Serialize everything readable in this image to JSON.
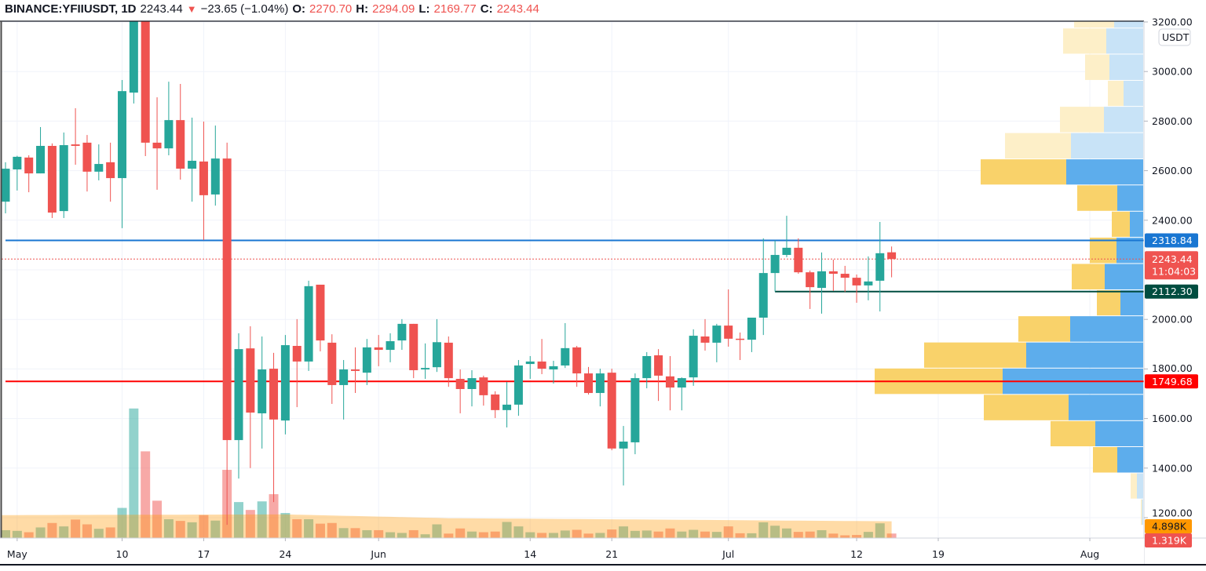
{
  "header": {
    "symbol": "BINANCE:YFIIUSDT, 1D",
    "last": "2243.44",
    "change": "−23.65 (−1.04%)",
    "change_direction_icon": "triangle-down-icon",
    "o_label": "O:",
    "o": "2270.70",
    "h_label": "H:",
    "h": "2294.09",
    "l_label": "L:",
    "l": "2169.77",
    "c_label": "C:",
    "c": "2243.44"
  },
  "colors": {
    "up": "#26a69a",
    "down": "#ef5350",
    "profile_up": "#5dadec",
    "profile_down": "#f9d26a",
    "profile_up_light": "#c8e3f7",
    "profile_down_light": "#fdefc8",
    "volume_ma": "#ffcc99"
  },
  "chart_data": {
    "type": "candlestick",
    "currency": "USDT",
    "ylim": [
      1171,
      3283
    ],
    "y_ticks": [
      "3200.00",
      "3000.00",
      "2800.00",
      "2600.00",
      "2400.00",
      "2000.00",
      "1800.00",
      "1600.00",
      "1400.00",
      "1200.00"
    ],
    "x_ticks": [
      {
        "label": "May",
        "date": "05-01"
      },
      {
        "label": "10",
        "date": "05-10"
      },
      {
        "label": "17",
        "date": "05-17"
      },
      {
        "label": "24",
        "date": "05-24"
      },
      {
        "label": "Jun",
        "date": "06-01"
      },
      {
        "label": "14",
        "date": "06-14"
      },
      {
        "label": "21",
        "date": "06-21"
      },
      {
        "label": "Jul",
        "date": "07-01"
      },
      {
        "label": "12",
        "date": "07-12"
      },
      {
        "label": "19",
        "date": "07-19"
      },
      {
        "label": "Aug",
        "date": "08-01"
      }
    ],
    "grid": true,
    "candle_fields": [
      "date",
      "open",
      "high",
      "low",
      "close",
      "volume_k"
    ],
    "candles": [
      [
        "04-30",
        2475,
        2634,
        2428,
        2608,
        2.3
      ],
      [
        "05-01",
        2605,
        2660,
        2520,
        2656,
        2.1
      ],
      [
        "05-02",
        2653,
        2662,
        2513,
        2589,
        1.7
      ],
      [
        "05-03",
        2589,
        2776,
        2589,
        2700,
        3.1
      ],
      [
        "05-04",
        2700,
        2710,
        2409,
        2431,
        4.4
      ],
      [
        "05-05",
        2437,
        2754,
        2409,
        2703,
        3.4
      ],
      [
        "05-06",
        2706,
        2852,
        2624,
        2700,
        5.4
      ],
      [
        "05-07",
        2713,
        2744,
        2516,
        2596,
        4.0
      ],
      [
        "05-08",
        2596,
        2706,
        2561,
        2627,
        2.7
      ],
      [
        "05-09",
        2634,
        2713,
        2475,
        2570,
        3.1
      ],
      [
        "05-10",
        2570,
        2966,
        2368,
        2921,
        8.8
      ],
      [
        "05-11",
        2915,
        3283,
        2871,
        3260,
        37.8
      ],
      [
        "05-12",
        3260,
        3270,
        2659,
        2713,
        25.3
      ],
      [
        "05-13",
        2713,
        2896,
        2523,
        2690,
        10.9
      ],
      [
        "05-14",
        2690,
        2959,
        2662,
        2804,
        5.5
      ],
      [
        "05-15",
        2804,
        2950,
        2564,
        2608,
        5.0
      ],
      [
        "05-16",
        2608,
        2814,
        2475,
        2640,
        4.6
      ],
      [
        "05-17",
        2637,
        2798,
        2320,
        2501,
        6.7
      ],
      [
        "05-18",
        2504,
        2782,
        2459,
        2649,
        5.1
      ],
      [
        "05-19",
        2649,
        2713,
        1171,
        1513,
        19.9
      ],
      [
        "05-20",
        1513,
        1944,
        1358,
        1880,
        10.5
      ],
      [
        "05-21",
        1883,
        1972,
        1400,
        1624,
        8.2
      ],
      [
        "05-22",
        1621,
        1931,
        1479,
        1798,
        10.7
      ],
      [
        "05-23",
        1801,
        1865,
        1263,
        1596,
        12.8
      ],
      [
        "05-24",
        1592,
        1937,
        1536,
        1896,
        7.3
      ],
      [
        "05-25",
        1893,
        2001,
        1646,
        1830,
        5.5
      ],
      [
        "05-26",
        1830,
        2156,
        1792,
        2134,
        5.5
      ],
      [
        "05-27",
        2140,
        2140,
        1871,
        1915,
        4.2
      ],
      [
        "05-28",
        1906,
        1940,
        1659,
        1735,
        4.4
      ],
      [
        "05-29",
        1735,
        1836,
        1596,
        1798,
        2.9
      ],
      [
        "05-30",
        1798,
        1887,
        1703,
        1792,
        2.9
      ],
      [
        "05-31",
        1785,
        1921,
        1735,
        1887,
        2.3
      ],
      [
        "06-01",
        1887,
        1937,
        1811,
        1877,
        2.3
      ],
      [
        "06-02",
        1877,
        1944,
        1827,
        1912,
        1.7
      ],
      [
        "06-03",
        1915,
        2001,
        1877,
        1982,
        1.5
      ],
      [
        "06-04",
        1982,
        1982,
        1763,
        1795,
        2.3
      ],
      [
        "06-05",
        1798,
        1903,
        1760,
        1804,
        1.1
      ],
      [
        "06-06",
        1807,
        2001,
        1788,
        1908,
        4.0
      ],
      [
        "06-07",
        1906,
        1931,
        1728,
        1763,
        1.3
      ],
      [
        "06-08",
        1760,
        1798,
        1621,
        1719,
        2.8
      ],
      [
        "06-09",
        1719,
        1795,
        1649,
        1763,
        1.9
      ],
      [
        "06-10",
        1766,
        1773,
        1652,
        1694,
        1.7
      ],
      [
        "06-11",
        1697,
        1710,
        1602,
        1634,
        1.9
      ],
      [
        "06-12",
        1634,
        1748,
        1564,
        1656,
        4.7
      ],
      [
        "06-13",
        1656,
        1836,
        1611,
        1814,
        3.4
      ],
      [
        "06-14",
        1820,
        1852,
        1760,
        1830,
        1.7
      ],
      [
        "06-15",
        1830,
        1921,
        1779,
        1801,
        1.5
      ],
      [
        "06-16",
        1798,
        1833,
        1741,
        1811,
        1.5
      ],
      [
        "06-17",
        1814,
        1985,
        1804,
        1884,
        2.2
      ],
      [
        "06-18",
        1887,
        1893,
        1728,
        1782,
        2.4
      ],
      [
        "06-19",
        1782,
        1808,
        1697,
        1703,
        1.3
      ],
      [
        "06-20",
        1703,
        1801,
        1649,
        1782,
        1.5
      ],
      [
        "06-21",
        1785,
        1801,
        1472,
        1479,
        2.5
      ],
      [
        "06-22",
        1479,
        1570,
        1330,
        1507,
        3.4
      ],
      [
        "06-23",
        1504,
        1782,
        1456,
        1763,
        2.1
      ],
      [
        "06-24",
        1763,
        1868,
        1722,
        1852,
        2.2
      ],
      [
        "06-25",
        1855,
        1880,
        1671,
        1773,
        1.9
      ],
      [
        "06-26",
        1770,
        1852,
        1633,
        1725,
        2.8
      ],
      [
        "06-27",
        1725,
        1766,
        1633,
        1763,
        1.9
      ],
      [
        "06-28",
        1766,
        1960,
        1732,
        1934,
        2.4
      ],
      [
        "06-29",
        1931,
        2001,
        1874,
        1906,
        1.9
      ],
      [
        "06-30",
        1906,
        1982,
        1827,
        1975,
        1.8
      ],
      [
        "07-01",
        1975,
        2121,
        1890,
        1922,
        3.4
      ],
      [
        "07-02",
        1922,
        1947,
        1836,
        1918,
        1.4
      ],
      [
        "07-03",
        1918,
        2007,
        1868,
        2007,
        1.4
      ],
      [
        "07-04",
        2007,
        2327,
        1937,
        2187,
        4.6
      ],
      [
        "07-05",
        2187,
        2318.84,
        2112.3,
        2260,
        3.6
      ],
      [
        "07-06",
        2260,
        2418,
        2251,
        2289,
        2.8
      ],
      [
        "07-07",
        2289,
        2327,
        2184,
        2190,
        1.8
      ],
      [
        "07-08",
        2190,
        2197,
        2042,
        2130,
        1.9
      ],
      [
        "07-09",
        2127,
        2270,
        2023,
        2194,
        2.3
      ],
      [
        "07-10",
        2194,
        2241,
        2115,
        2184,
        1.3
      ],
      [
        "07-11",
        2184,
        2216,
        2111,
        2168,
        0.8
      ],
      [
        "07-12",
        2168,
        2181,
        2067,
        2137,
        0.9
      ],
      [
        "07-13",
        2137,
        2254,
        2077,
        2153,
        1.8
      ],
      [
        "07-14",
        2156,
        2393,
        2032,
        2267,
        4.3
      ],
      [
        "07-15",
        2270.7,
        2294.09,
        2169.77,
        2243.44,
        1.319
      ]
    ],
    "volume_ma_k": [
      [
        "04-30",
        6.7
      ],
      [
        "05-24",
        6.9
      ],
      [
        "06-07",
        5.8
      ],
      [
        "07-15",
        4.898
      ]
    ],
    "volume_profile": [
      {
        "low": 1171,
        "high": 1277,
        "up": 1.5,
        "down": 1.5,
        "value_area": false
      },
      {
        "low": 1277,
        "high": 1382,
        "up": 8,
        "down": 8,
        "value_area": false
      },
      {
        "low": 1382,
        "high": 1488,
        "up": 33,
        "down": 31,
        "value_area": true
      },
      {
        "low": 1488,
        "high": 1593,
        "up": 61,
        "down": 57,
        "value_area": true
      },
      {
        "low": 1593,
        "high": 1699,
        "up": 95,
        "down": 108,
        "value_area": true
      },
      {
        "low": 1699,
        "high": 1805,
        "up": 179,
        "down": 163,
        "value_area": true
      },
      {
        "low": 1805,
        "high": 1910,
        "up": 149,
        "down": 130,
        "value_area": true
      },
      {
        "low": 1910,
        "high": 2016,
        "up": 93,
        "down": 66,
        "value_area": true
      },
      {
        "low": 2016,
        "high": 2121,
        "up": 29,
        "down": 30,
        "value_area": true
      },
      {
        "low": 2121,
        "high": 2227,
        "up": 49,
        "down": 42,
        "value_area": true
      },
      {
        "low": 2227,
        "high": 2333,
        "up": 34,
        "down": 34,
        "value_area": true
      },
      {
        "low": 2333,
        "high": 2438,
        "up": 17,
        "down": 23,
        "value_area": true
      },
      {
        "low": 2438,
        "high": 2544,
        "up": 33,
        "down": 51,
        "value_area": true
      },
      {
        "low": 2544,
        "high": 2649,
        "up": 98,
        "down": 109,
        "value_area": true
      },
      {
        "low": 2649,
        "high": 2755,
        "up": 92,
        "down": 84,
        "value_area": false
      },
      {
        "low": 2755,
        "high": 2861,
        "up": 50,
        "down": 56,
        "value_area": false
      },
      {
        "low": 2861,
        "high": 2966,
        "up": 25,
        "down": 20,
        "value_area": false
      },
      {
        "low": 2966,
        "high": 3072,
        "up": 43,
        "down": 31,
        "value_area": false
      },
      {
        "low": 3072,
        "high": 3177,
        "up": 47,
        "down": 55,
        "value_area": false
      },
      {
        "low": 3177,
        "high": 3283,
        "up": 37,
        "down": 51,
        "value_area": false
      }
    ],
    "lines": [
      {
        "name": "resistance",
        "price": 2318.84,
        "label": "2318.84",
        "color": "#1976d2",
        "from": "04-30"
      },
      {
        "name": "support",
        "price": 2112.3,
        "label": "2112.30",
        "color": "#004d40",
        "from": "07-05"
      },
      {
        "name": "poc",
        "price": 1749.68,
        "label": "1749.68",
        "color": "#ff0000",
        "from": "04-30"
      }
    ],
    "last_price": {
      "price": 2243.44,
      "label": "2243.44",
      "countdown": "11:04:03",
      "color": "#ef5350"
    },
    "volume_tags": {
      "ma": "4.898K",
      "ma_color": "#ff9800",
      "volume": "1.319K",
      "volume_color": "#ef5350"
    }
  }
}
